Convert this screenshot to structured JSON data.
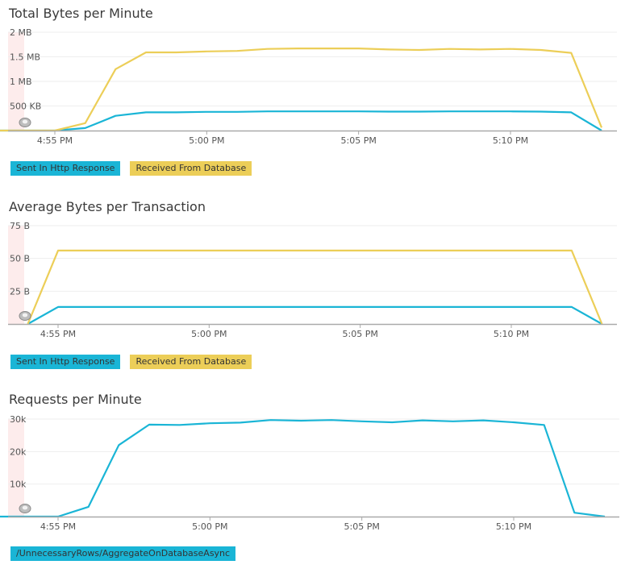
{
  "charts": [
    {
      "title": "Total Bytes per Minute",
      "chart_data": {
        "type": "line",
        "x_ticks": [
          "4:55 PM",
          "5:00 PM",
          "5:05 PM",
          "5:10 PM"
        ],
        "y_ticks": [
          "2 MB",
          "1.5 MB",
          "1 MB",
          "500 KB"
        ],
        "ylim": [
          0,
          2000000
        ],
        "x": [
          "4:53 PM",
          "4:54 PM",
          "4:55 PM",
          "4:56 PM",
          "4:57 PM",
          "4:58 PM",
          "4:59 PM",
          "5:00 PM",
          "5:01 PM",
          "5:02 PM",
          "5:03 PM",
          "5:04 PM",
          "5:05 PM",
          "5:06 PM",
          "5:07 PM",
          "5:08 PM",
          "5:09 PM",
          "5:10 PM",
          "5:11 PM",
          "5:12 PM",
          "5:13 PM"
        ],
        "series": [
          {
            "name": "Sent In Http Response",
            "color": "#1ab5d6",
            "values": [
              0,
              0,
              0,
              50000,
              300000,
              370000,
              370000,
              380000,
              380000,
              390000,
              390000,
              390000,
              390000,
              385000,
              385000,
              390000,
              390000,
              390000,
              385000,
              370000,
              0
            ]
          },
          {
            "name": "Received From Database",
            "color": "#ecce58",
            "values": [
              0,
              0,
              0,
              150000,
              1250000,
              1590000,
              1590000,
              1610000,
              1620000,
              1660000,
              1670000,
              1670000,
              1670000,
              1650000,
              1640000,
              1660000,
              1650000,
              1660000,
              1640000,
              1580000,
              60000
            ]
          }
        ],
        "legend": "bottom-left",
        "grid": true
      }
    },
    {
      "title": "Average Bytes per Transaction",
      "chart_data": {
        "type": "line",
        "x_ticks": [
          "4:55 PM",
          "5:00 PM",
          "5:05 PM",
          "5:10 PM"
        ],
        "y_ticks": [
          "75 B",
          "50 B",
          "25 B"
        ],
        "ylim": [
          0,
          75
        ],
        "x": [
          "4:54 PM",
          "4:55 PM",
          "4:56 PM",
          "4:57 PM",
          "4:58 PM",
          "4:59 PM",
          "5:00 PM",
          "5:01 PM",
          "5:02 PM",
          "5:03 PM",
          "5:04 PM",
          "5:05 PM",
          "5:06 PM",
          "5:07 PM",
          "5:08 PM",
          "5:09 PM",
          "5:10 PM",
          "5:11 PM",
          "5:12 PM",
          "5:13 PM"
        ],
        "series": [
          {
            "name": "Sent In Http Response",
            "color": "#1ab5d6",
            "values": [
              0,
              13,
              13,
              13,
              13,
              13,
              13,
              13,
              13,
              13,
              13,
              13,
              13,
              13,
              13,
              13,
              13,
              13,
              13,
              0
            ]
          },
          {
            "name": "Received From Database",
            "color": "#ecce58",
            "values": [
              0,
              56,
              56,
              56,
              56,
              56,
              56,
              56,
              56,
              56,
              56,
              56,
              56,
              56,
              56,
              56,
              56,
              56,
              56,
              0
            ]
          }
        ],
        "legend": "bottom-left",
        "grid": true
      }
    },
    {
      "title": "Requests per Minute",
      "chart_data": {
        "type": "line",
        "x_ticks": [
          "4:55 PM",
          "5:00 PM",
          "5:05 PM",
          "5:10 PM"
        ],
        "y_ticks": [
          "30k",
          "20k",
          "10k"
        ],
        "ylim": [
          0,
          30000
        ],
        "x": [
          "4:53 PM",
          "4:54 PM",
          "4:55 PM",
          "4:56 PM",
          "4:57 PM",
          "4:58 PM",
          "4:59 PM",
          "5:00 PM",
          "5:01 PM",
          "5:02 PM",
          "5:03 PM",
          "5:04 PM",
          "5:05 PM",
          "5:06 PM",
          "5:07 PM",
          "5:08 PM",
          "5:09 PM",
          "5:10 PM",
          "5:11 PM",
          "5:12 PM",
          "5:13 PM"
        ],
        "series": [
          {
            "name": "/UnnecessaryRows/AggregateOnDatabaseAsync",
            "color": "#1ab5d6",
            "values": [
              0,
              0,
              0,
              3000,
              22000,
              28300,
              28200,
              28700,
              28900,
              29700,
              29500,
              29700,
              29300,
              29000,
              29600,
              29300,
              29600,
              29000,
              28200,
              1200,
              0
            ]
          }
        ],
        "legend": "bottom-left",
        "grid": true
      }
    }
  ],
  "colors": {
    "teal": "#1ab5d6",
    "yellow": "#ecce58",
    "axis": "#a9a9a9",
    "grid": "#eeeeee",
    "band": "#fdecec"
  },
  "icons": {
    "marker": "grey-radio-marker-icon"
  }
}
